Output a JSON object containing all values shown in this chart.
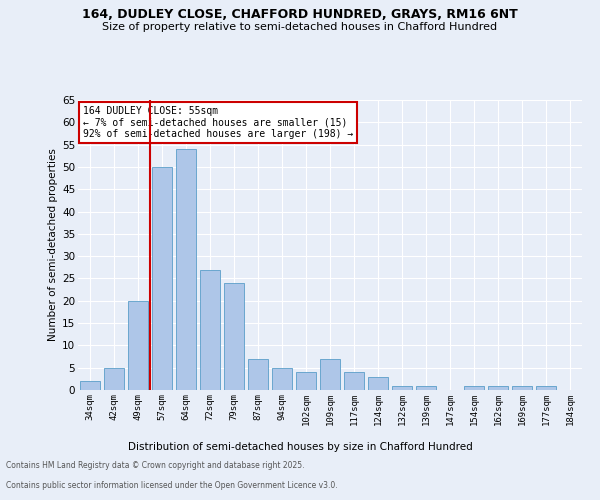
{
  "title": "164, DUDLEY CLOSE, CHAFFORD HUNDRED, GRAYS, RM16 6NT",
  "subtitle": "Size of property relative to semi-detached houses in Chafford Hundred",
  "xlabel": "Distribution of semi-detached houses by size in Chafford Hundred",
  "ylabel": "Number of semi-detached properties",
  "footer_line1": "Contains HM Land Registry data © Crown copyright and database right 2025.",
  "footer_line2": "Contains public sector information licensed under the Open Government Licence v3.0.",
  "categories": [
    "34sqm",
    "42sqm",
    "49sqm",
    "57sqm",
    "64sqm",
    "72sqm",
    "79sqm",
    "87sqm",
    "94sqm",
    "102sqm",
    "109sqm",
    "117sqm",
    "124sqm",
    "132sqm",
    "139sqm",
    "147sqm",
    "154sqm",
    "162sqm",
    "169sqm",
    "177sqm",
    "184sqm"
  ],
  "values": [
    2,
    5,
    20,
    50,
    54,
    27,
    24,
    7,
    5,
    4,
    7,
    4,
    3,
    1,
    1,
    0,
    1,
    1,
    1,
    1,
    0
  ],
  "bar_color": "#aec6e8",
  "bar_edge_color": "#5a9ec9",
  "background_color": "#e8eef8",
  "grid_color": "#ffffff",
  "vline_color": "#cc0000",
  "annotation_title": "164 DUDLEY CLOSE: 55sqm",
  "annotation_line1": "← 7% of semi-detached houses are smaller (15)",
  "annotation_line2": "92% of semi-detached houses are larger (198) →",
  "annotation_box_color": "#ffffff",
  "annotation_box_edge": "#cc0000",
  "ylim": [
    0,
    65
  ],
  "yticks": [
    0,
    5,
    10,
    15,
    20,
    25,
    30,
    35,
    40,
    45,
    50,
    55,
    60,
    65
  ],
  "vline_pos": 2.5
}
